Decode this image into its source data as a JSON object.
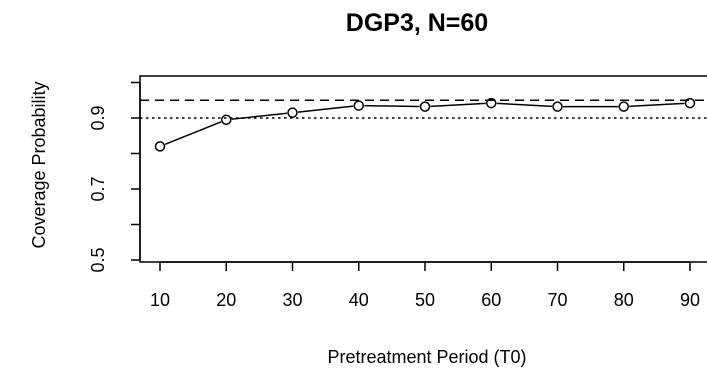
{
  "chart_data": {
    "type": "line",
    "title": "DGP3, N=60",
    "xlabel": "Pretreatment Period (T0)",
    "ylabel": "Coverage Probability",
    "x": [
      10,
      20,
      30,
      40,
      50,
      60,
      70,
      80,
      90
    ],
    "series": [
      {
        "values": [
          0.82,
          0.895,
          0.915,
          0.935,
          0.932,
          0.942,
          0.932,
          0.932,
          0.942
        ],
        "marker": "open-circle",
        "color": "#000000"
      }
    ],
    "reference_lines": [
      {
        "y": 0.95,
        "style": "dashed"
      },
      {
        "y": 0.9,
        "style": "dotted"
      }
    ],
    "xticks": [
      10,
      20,
      30,
      40,
      50,
      60,
      70,
      80,
      90
    ],
    "yticks": [
      0.5,
      0.7,
      0.9
    ],
    "yticks_minor": [
      0.6,
      0.8,
      1.0
    ],
    "xlim": [
      5,
      93
    ],
    "ylim": [
      0.48,
      1.03
    ],
    "grid": false,
    "legend": "none"
  }
}
